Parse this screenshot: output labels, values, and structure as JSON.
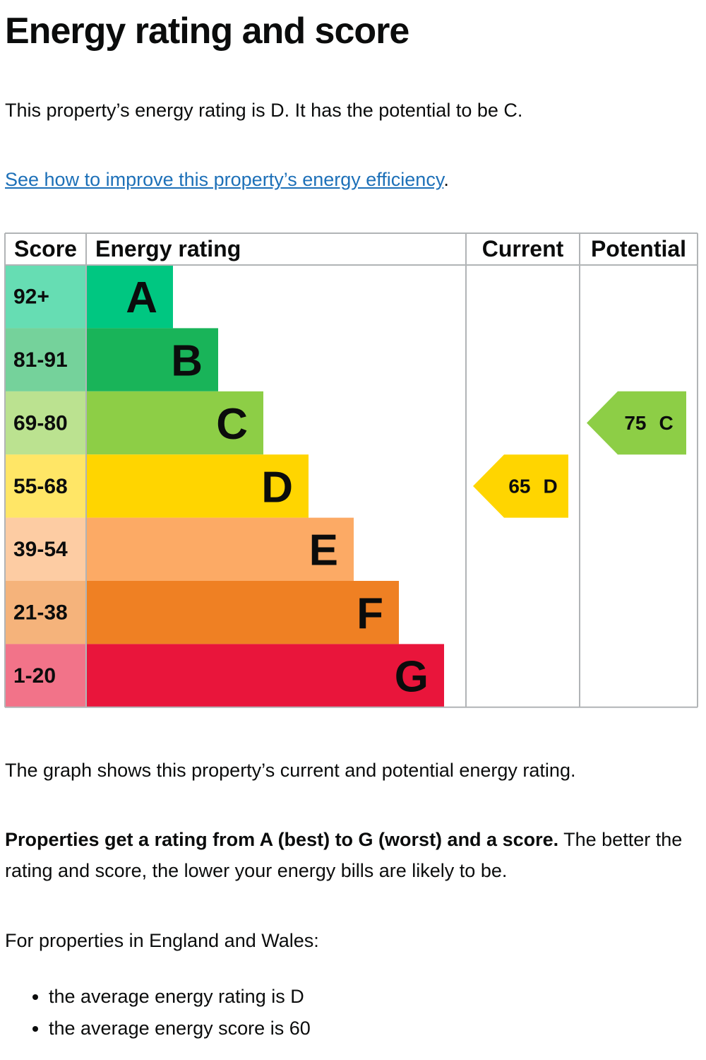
{
  "heading": "Energy rating and score",
  "intro": "This property’s energy rating is D. It has the potential to be C.",
  "link": {
    "text": "See how to improve this property’s energy efficiency",
    "after": "."
  },
  "graph": {
    "headers": [
      "Score",
      "Energy rating",
      "Current",
      "Potential"
    ],
    "bands": [
      {
        "score": "92+",
        "rating": "A",
        "color": "#00c781"
      },
      {
        "score": "81-91",
        "rating": "B",
        "color": "#19b459"
      },
      {
        "score": "69-80",
        "rating": "C",
        "color": "#8dce46"
      },
      {
        "score": "55-68",
        "rating": "D",
        "color": "#ffd500"
      },
      {
        "score": "39-54",
        "rating": "E",
        "color": "#fcaa65"
      },
      {
        "score": "21-38",
        "rating": "F",
        "color": "#ef8023"
      },
      {
        "score": "1-20",
        "rating": "G",
        "color": "#e9153b"
      }
    ],
    "current": {
      "score": 65,
      "rating": "D"
    },
    "potential": {
      "score": 75,
      "rating": "C"
    }
  },
  "caption": "The graph shows this property’s current and potential energy rating.",
  "explanation": {
    "bold": "Properties get a rating from A (best) to G (worst) and a score.",
    "rest": "The better the rating and score, the lower your energy bills are likely to be."
  },
  "averages": {
    "intro": "For properties in England and Wales:",
    "items": [
      "the average energy rating is D",
      "the average energy score is 60"
    ]
  }
}
